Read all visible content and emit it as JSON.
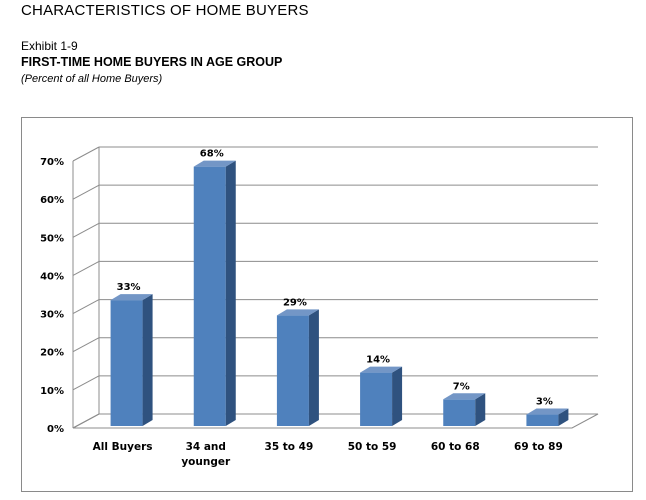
{
  "header": {
    "report_title": "CHARACTERISTICS OF HOME BUYERS",
    "exhibit": "Exhibit 1-9"
  },
  "chart_data": {
    "type": "bar",
    "title": "FIRST-TIME HOME BUYERS IN AGE GROUP",
    "subtitle": "(Percent of all Home Buyers)",
    "categories": [
      [
        "All Buyers"
      ],
      [
        "34 and",
        "younger"
      ],
      [
        "35 to 49"
      ],
      [
        "50 to 59"
      ],
      [
        "60 to 68"
      ],
      [
        "69 to 89"
      ]
    ],
    "values": [
      33,
      68,
      29,
      14,
      7,
      3
    ],
    "data_labels": [
      "33%",
      "68%",
      "29%",
      "14%",
      "7%",
      "3%"
    ],
    "yticks": [
      "0%",
      "10%",
      "20%",
      "30%",
      "40%",
      "50%",
      "60%",
      "70%"
    ],
    "ylim": [
      0,
      70
    ],
    "grid": true,
    "legend": "none",
    "colors": {
      "bar_front": "#4F81BD",
      "bar_side": "#2F527F",
      "bar_top": "#7396C6",
      "grid": "#8c8c8c"
    }
  }
}
